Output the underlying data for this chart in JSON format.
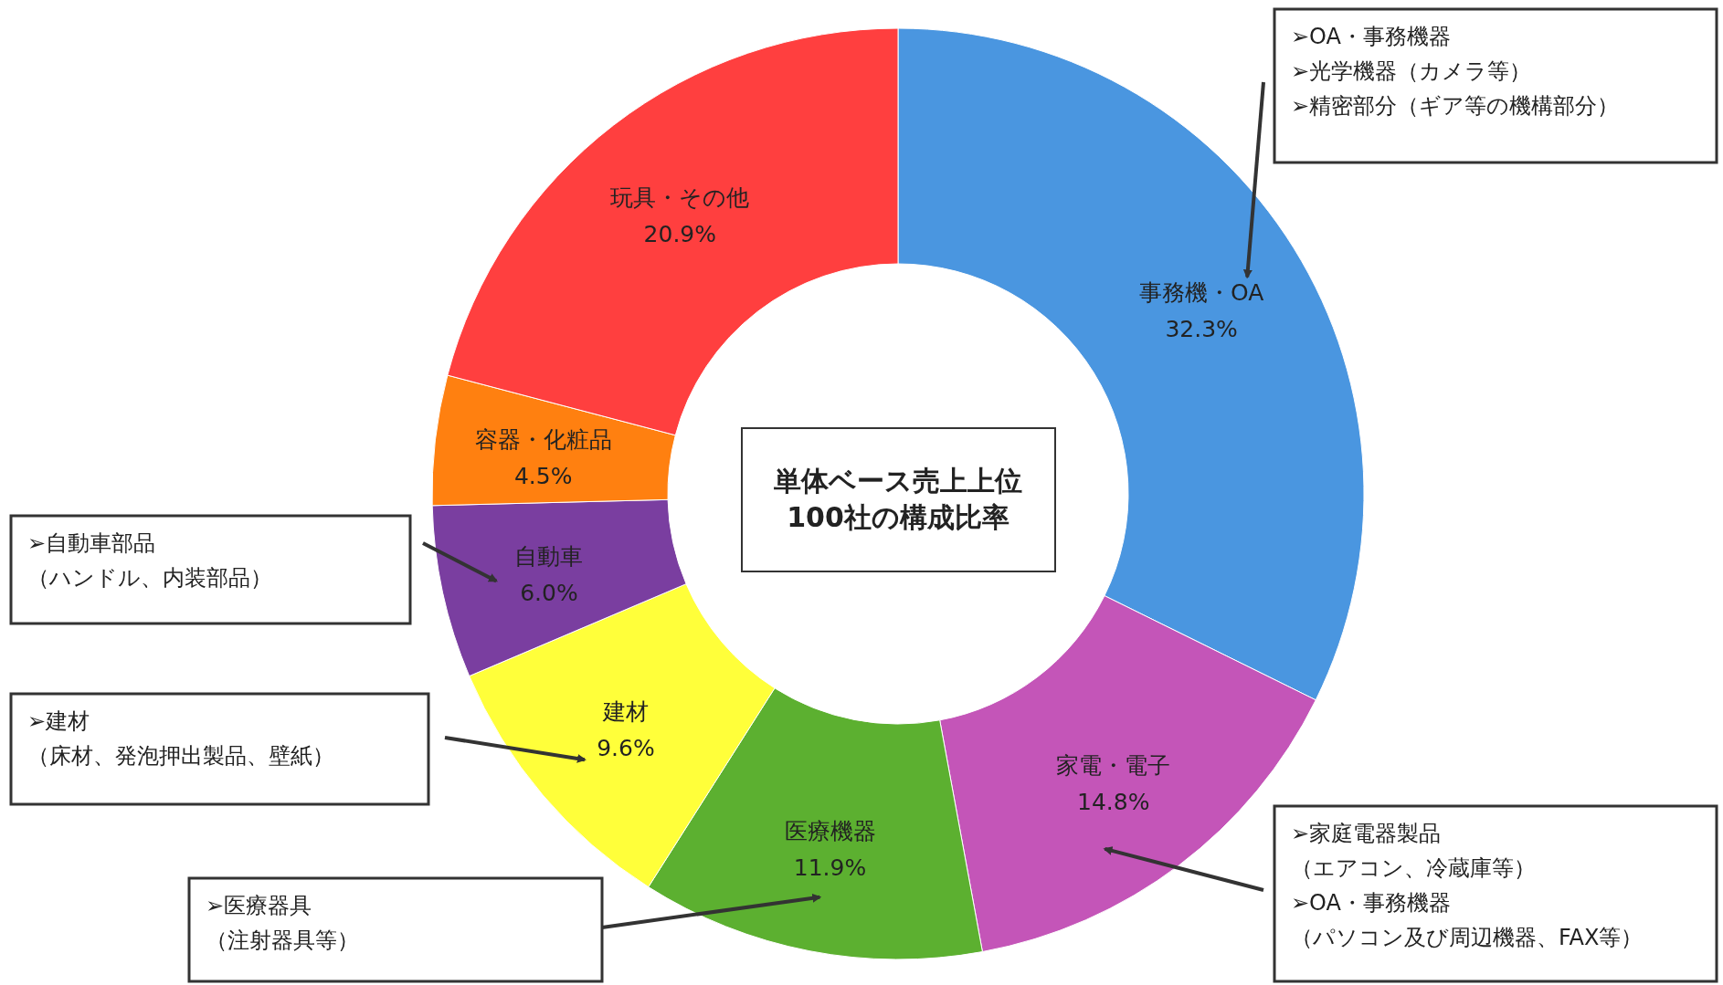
{
  "chart_data": {
    "type": "donut",
    "title": "単体ベース売上上位100社の構成比率",
    "categories": [
      "事務機・OA",
      "家電・電子",
      "医療機器",
      "建材",
      "自動車",
      "容器・化粧品",
      "玩具・その他"
    ],
    "values": [
      32.3,
      14.8,
      11.9,
      9.6,
      6.0,
      4.5,
      20.9
    ],
    "value_labels": [
      "32.3%",
      "14.8%",
      "11.9%",
      "9.6%",
      "6.0%",
      "4.5%",
      "20.9%"
    ],
    "colors": [
      "#4a96e0",
      "#c455b8",
      "#5cb030",
      "#ffff3a",
      "#7a3ea0",
      "#ff8010",
      "#ff3f3f"
    ],
    "annotations": [
      "➢OA・事務機器",
      "➢光学機器（カメラ等）",
      "➢精密部分（ギア等の機構部分）",
      "➢家庭電器製品",
      "（エアコン、冷蔵庫等）",
      "➢OA・事務機器",
      "（パソコン及び周辺機器、FAX等）",
      "➢医療器具",
      "（注射器具等）",
      "➢建材",
      "（床材、発泡押出製品、壁紙）",
      "➢自動車部品",
      "（ハンドル、内装部品）"
    ]
  }
}
